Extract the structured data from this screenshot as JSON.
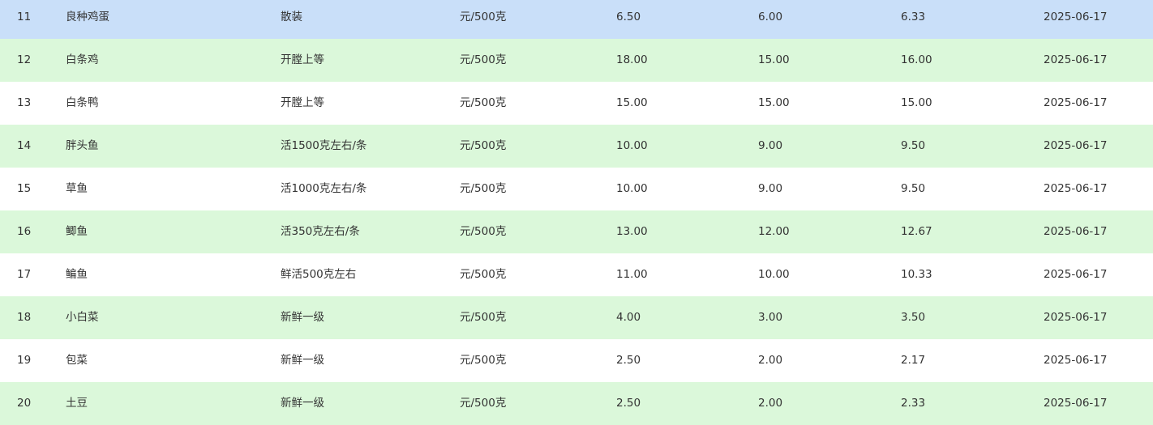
{
  "colors": {
    "selected_row": "#c9dff9",
    "alt_row": "#dbf8da",
    "row": "#ffffff",
    "text": "#333333"
  },
  "rows": [
    {
      "no": "11",
      "name": "良种鸡蛋",
      "spec": "散装",
      "unit": "元/500克",
      "high": "6.50",
      "low": "6.00",
      "avg": "6.33",
      "date": "2025-06-17",
      "selected": true
    },
    {
      "no": "12",
      "name": "白条鸡",
      "spec": "开膛上等",
      "unit": "元/500克",
      "high": "18.00",
      "low": "15.00",
      "avg": "16.00",
      "date": "2025-06-17"
    },
    {
      "no": "13",
      "name": "白条鸭",
      "spec": "开膛上等",
      "unit": "元/500克",
      "high": "15.00",
      "low": "15.00",
      "avg": "15.00",
      "date": "2025-06-17"
    },
    {
      "no": "14",
      "name": "胖头鱼",
      "spec": "活1500克左右/条",
      "unit": "元/500克",
      "high": "10.00",
      "low": "9.00",
      "avg": "9.50",
      "date": "2025-06-17"
    },
    {
      "no": "15",
      "name": "草鱼",
      "spec": "活1000克左右/条",
      "unit": "元/500克",
      "high": "10.00",
      "low": "9.00",
      "avg": "9.50",
      "date": "2025-06-17"
    },
    {
      "no": "16",
      "name": "鲫鱼",
      "spec": "活350克左右/条",
      "unit": "元/500克",
      "high": "13.00",
      "low": "12.00",
      "avg": "12.67",
      "date": "2025-06-17"
    },
    {
      "no": "17",
      "name": "鳊鱼",
      "spec": "鲜活500克左右",
      "unit": "元/500克",
      "high": "11.00",
      "low": "10.00",
      "avg": "10.33",
      "date": "2025-06-17"
    },
    {
      "no": "18",
      "name": "小白菜",
      "spec": "新鲜一级",
      "unit": "元/500克",
      "high": "4.00",
      "low": "3.00",
      "avg": "3.50",
      "date": "2025-06-17"
    },
    {
      "no": "19",
      "name": "包菜",
      "spec": "新鲜一级",
      "unit": "元/500克",
      "high": "2.50",
      "low": "2.00",
      "avg": "2.17",
      "date": "2025-06-17"
    },
    {
      "no": "20",
      "name": "土豆",
      "spec": "新鲜一级",
      "unit": "元/500克",
      "high": "2.50",
      "low": "2.00",
      "avg": "2.33",
      "date": "2025-06-17"
    }
  ]
}
